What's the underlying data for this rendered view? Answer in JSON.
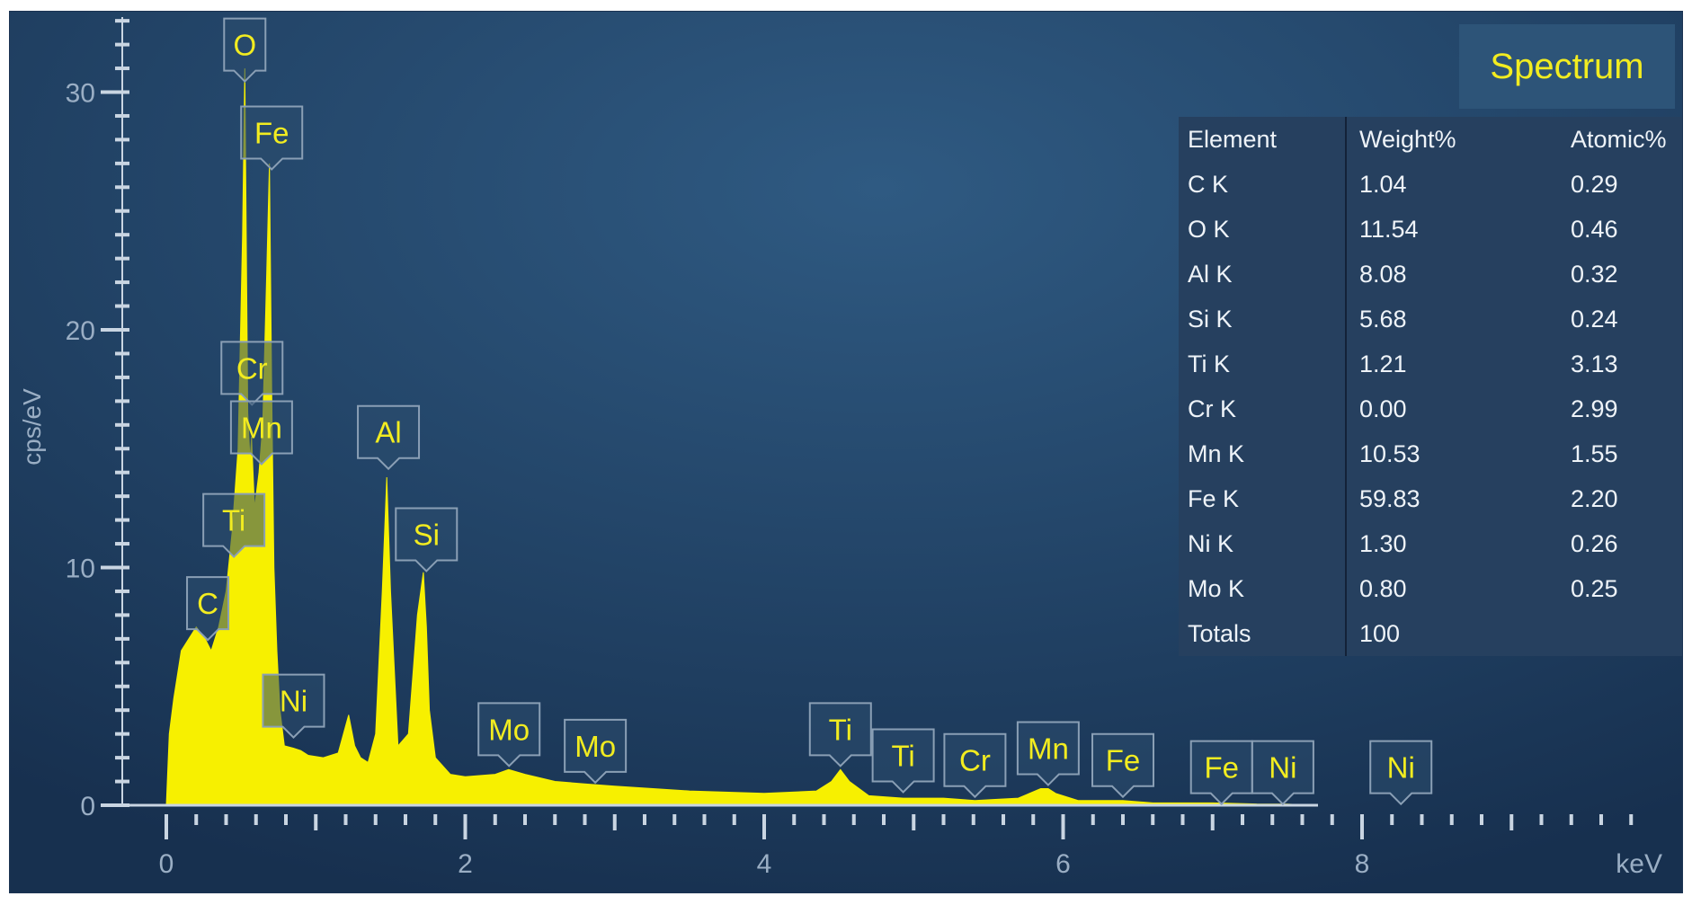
{
  "panel": {
    "title": "Spectrum"
  },
  "table": {
    "headers": [
      "Element",
      "Weight%",
      "Atomic%"
    ],
    "rows": [
      [
        "C K",
        "1.04",
        "0.29"
      ],
      [
        "O K",
        "11.54",
        "0.46"
      ],
      [
        "Al K",
        "8.08",
        "0.32"
      ],
      [
        "Si K",
        "5.68",
        "0.24"
      ],
      [
        "Ti K",
        "1.21",
        "3.13"
      ],
      [
        "Cr K",
        "0.00",
        "2.99"
      ],
      [
        "Mn K",
        "10.53",
        "1.55"
      ],
      [
        "Fe K",
        "59.83",
        "2.20"
      ],
      [
        "Ni K",
        "1.30",
        "0.26"
      ],
      [
        "Mo K",
        "0.80",
        "0.25"
      ],
      [
        "Totals",
        "100",
        ""
      ]
    ]
  },
  "colors": {
    "background_light": "#2f5a82",
    "background_dark": "#17304f",
    "spectrum_fill": "#f7f000",
    "axis": "#c9d5e2",
    "label_text": "#f2ec20"
  },
  "chart_data": {
    "type": "area",
    "title": "",
    "xlabel": "keV",
    "ylabel": "cps/eV",
    "xlim": [
      0,
      10
    ],
    "ylim": [
      0,
      33
    ],
    "x_ticks": [
      0,
      2,
      4,
      6,
      8
    ],
    "x_tick_labels": [
      "0",
      "2",
      "4",
      "6",
      "8"
    ],
    "y_ticks": [
      0,
      10,
      20,
      30
    ],
    "y_tick_labels": [
      "0",
      "10",
      "20",
      "30"
    ],
    "grid": false,
    "series": [
      {
        "x": [
          0.0,
          0.02,
          0.05,
          0.1,
          0.15,
          0.2,
          0.26,
          0.3,
          0.35,
          0.4,
          0.44,
          0.48,
          0.51,
          0.525,
          0.545,
          0.56,
          0.57,
          0.59,
          0.62,
          0.645,
          0.67,
          0.69,
          0.705,
          0.72,
          0.74,
          0.76,
          0.79,
          0.85,
          0.9,
          0.95,
          1.05,
          1.15,
          1.22,
          1.26,
          1.3,
          1.35,
          1.4,
          1.445,
          1.475,
          1.5,
          1.55,
          1.62,
          1.68,
          1.72,
          1.74,
          1.76,
          1.8,
          1.9,
          2.0,
          2.2,
          2.29,
          2.4,
          2.6,
          2.8,
          3.0,
          3.5,
          4.0,
          4.35,
          4.45,
          4.51,
          4.57,
          4.7,
          4.93,
          5.2,
          5.41,
          5.7,
          5.85,
          5.9,
          5.95,
          6.1,
          6.4,
          6.6,
          7.0,
          7.3,
          7.5,
          7.6,
          7.7
        ],
        "y": [
          0.0,
          3.0,
          4.5,
          6.5,
          7.0,
          7.5,
          7.0,
          6.5,
          7.5,
          9.0,
          11.5,
          15.0,
          24.0,
          31.0,
          16.5,
          14.5,
          15.5,
          12.5,
          14.0,
          16.0,
          22.0,
          27.0,
          17.5,
          10.0,
          6.5,
          4.0,
          2.5,
          2.4,
          2.3,
          2.1,
          2.0,
          2.2,
          3.8,
          2.5,
          2.0,
          1.8,
          3.0,
          9.0,
          13.8,
          9.0,
          2.5,
          3.0,
          8.0,
          9.8,
          7.5,
          4.0,
          2.0,
          1.3,
          1.2,
          1.3,
          1.5,
          1.3,
          1.0,
          0.9,
          0.8,
          0.6,
          0.5,
          0.6,
          1.0,
          1.5,
          1.0,
          0.4,
          0.3,
          0.3,
          0.2,
          0.3,
          0.7,
          0.7,
          0.5,
          0.2,
          0.2,
          0.1,
          0.1,
          0.05,
          0.05,
          0.02,
          0.0
        ]
      }
    ],
    "annotations": [
      {
        "text": "O",
        "x": 0.525,
        "y": 31.0,
        "label_y": 32.0
      },
      {
        "text": "Fe",
        "x": 0.705,
        "y": 27.5,
        "label_y": 28.3
      },
      {
        "text": "Cr",
        "x": 0.573,
        "y": 16.0,
        "label_y": 18.4
      },
      {
        "text": "Mn",
        "x": 0.637,
        "y": 15.5,
        "label_y": 15.9
      },
      {
        "text": "Ti",
        "x": 0.452,
        "y": 12.0,
        "label_y": 12.0
      },
      {
        "text": "C",
        "x": 0.277,
        "y": 7.5,
        "label_y": 8.5
      },
      {
        "text": "Ni",
        "x": 0.851,
        "y": 2.4,
        "label_y": 4.4
      },
      {
        "text": "Al",
        "x": 1.486,
        "y": 13.8,
        "label_y": 15.7
      },
      {
        "text": "Si",
        "x": 1.74,
        "y": 9.8,
        "label_y": 11.4
      },
      {
        "text": "Mo",
        "x": 2.293,
        "y": 1.5,
        "label_y": 3.2
      },
      {
        "text": "Mo",
        "x": 2.87,
        "y": 1.0,
        "label_y": 2.5
      },
      {
        "text": "Ti",
        "x": 4.51,
        "y": 1.5,
        "label_y": 3.2
      },
      {
        "text": "Ti",
        "x": 4.93,
        "y": 0.3,
        "label_y": 2.1
      },
      {
        "text": "Cr",
        "x": 5.41,
        "y": 0.2,
        "label_y": 1.9
      },
      {
        "text": "Mn",
        "x": 5.9,
        "y": 0.7,
        "label_y": 2.4
      },
      {
        "text": "Fe",
        "x": 6.4,
        "y": 0.2,
        "label_y": 1.9
      },
      {
        "text": "Fe",
        "x": 7.06,
        "y": 0.05,
        "label_y": 1.6
      },
      {
        "text": "Ni",
        "x": 7.47,
        "y": 0.05,
        "label_y": 1.6
      },
      {
        "text": "Ni",
        "x": 8.26,
        "y": 0.0,
        "label_y": 1.6
      }
    ]
  }
}
